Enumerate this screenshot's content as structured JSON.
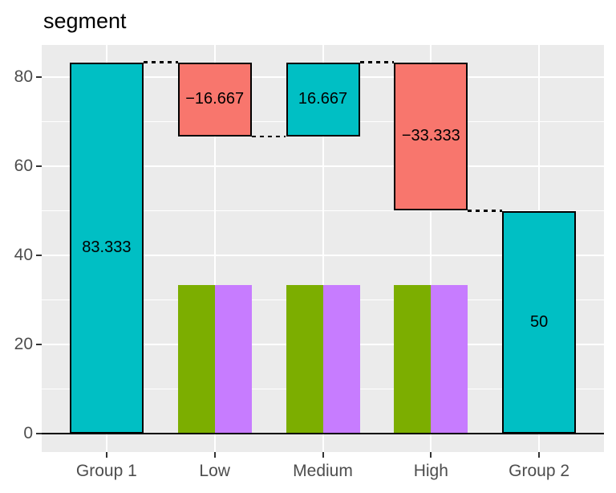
{
  "title": "segment",
  "colors": {
    "increase_fill": "#00BFC4",
    "decrease_fill": "#F8766D",
    "green_fill": "#7CAE00",
    "purple_fill": "#C77CFF",
    "panel_bg": "#EBEBEB",
    "grid": "#FFFFFF",
    "bar_stroke": "#000000",
    "connector": "#000000",
    "zero_line": "#000000",
    "axis_text": "#4D4D4D",
    "tick_mark": "#333333",
    "title_text": "#000000",
    "label_text": "#000000"
  },
  "axes": {
    "y_ticks": [
      0,
      20,
      40,
      60,
      80
    ],
    "y_tick_labels": [
      "0",
      "20",
      "40",
      "60",
      "80"
    ],
    "y_minor_ticks": [
      10,
      30,
      50,
      70
    ],
    "x_categories": [
      "Group 1",
      "Low",
      "Medium",
      "High",
      "Group 2"
    ]
  },
  "chart_data": {
    "type": "bar",
    "subtype": "waterfall",
    "title": "segment",
    "categories": [
      "Group 1",
      "Low",
      "Medium",
      "High",
      "Group 2"
    ],
    "xlabel": "",
    "ylabel": "",
    "ylim": [
      -4.2,
      87.5
    ],
    "grid": true,
    "legend": "none",
    "waterfall_bars": [
      {
        "category": "Group 1",
        "label": "83.333",
        "value": 83.333,
        "start": 0,
        "end": 83.333,
        "color": "#00BFC4"
      },
      {
        "category": "Low",
        "label": "−16.667",
        "value": -16.667,
        "start": 83.333,
        "end": 66.667,
        "color": "#F8766D"
      },
      {
        "category": "Medium",
        "label": "16.667",
        "value": 16.667,
        "start": 66.667,
        "end": 83.333,
        "color": "#00BFC4"
      },
      {
        "category": "High",
        "label": "−33.333",
        "value": -33.333,
        "start": 83.333,
        "end": 50,
        "color": "#F8766D"
      },
      {
        "category": "Group 2",
        "label": "50",
        "value": 50,
        "start": 0,
        "end": 50,
        "color": "#00BFC4"
      }
    ],
    "dodged_bars": [
      {
        "category": "Low",
        "series": [
          {
            "name": "green",
            "value": 33.333,
            "color": "#7CAE00"
          },
          {
            "name": "purple",
            "value": 33.333,
            "color": "#C77CFF"
          }
        ]
      },
      {
        "category": "Medium",
        "series": [
          {
            "name": "green",
            "value": 33.333,
            "color": "#7CAE00"
          },
          {
            "name": "purple",
            "value": 33.333,
            "color": "#C77CFF"
          }
        ]
      },
      {
        "category": "High",
        "series": [
          {
            "name": "green",
            "value": 33.333,
            "color": "#7CAE00"
          },
          {
            "name": "purple",
            "value": 33.333,
            "color": "#C77CFF"
          }
        ]
      }
    ],
    "connectors": [
      {
        "from": "Group 1",
        "to": "Low",
        "level": 83.333
      },
      {
        "from": "Low",
        "to": "Medium",
        "level": 66.667
      },
      {
        "from": "Medium",
        "to": "High",
        "level": 83.333
      },
      {
        "from": "High",
        "to": "Group 2",
        "level": 50
      }
    ]
  }
}
